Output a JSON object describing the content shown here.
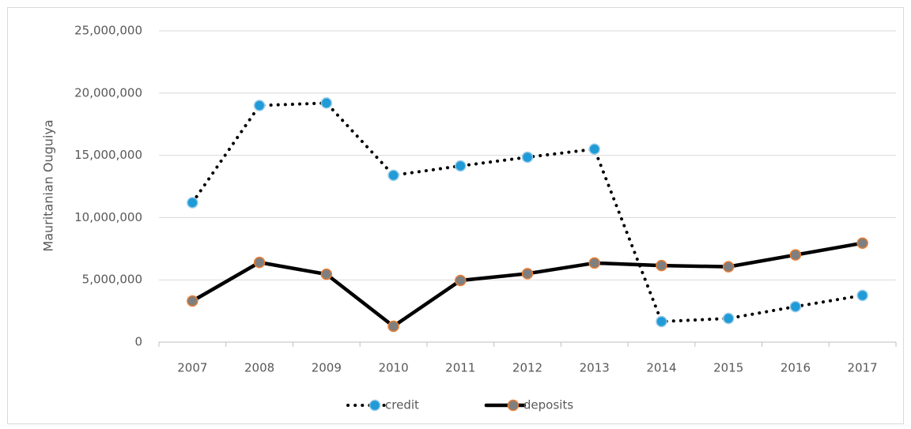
{
  "chart_data": {
    "type": "line",
    "y_label": "Mauritanian Ouguiya",
    "categories": [
      "2007",
      "2008",
      "2009",
      "2010",
      "2011",
      "2012",
      "2013",
      "2014",
      "2015",
      "2016",
      "2017"
    ],
    "series": [
      {
        "name": "credit",
        "color": "#000000",
        "dash": "dotted",
        "marker_fill": "#1f9bd7",
        "marker_stroke": "#9ccbe8",
        "values": [
          11200000,
          19000000,
          19200000,
          13400000,
          14150000,
          14850000,
          15500000,
          1650000,
          1900000,
          2850000,
          3750000
        ]
      },
      {
        "name": "deposits",
        "color": "#000000",
        "dash": "solid",
        "marker_fill": "#7f7f7f",
        "marker_stroke": "#ed7d31",
        "values": [
          3300000,
          6400000,
          5450000,
          1270000,
          4950000,
          5500000,
          6350000,
          6150000,
          6050000,
          7000000,
          7950000
        ]
      }
    ],
    "ylim": [
      0,
      25000000
    ],
    "yticks": [
      0,
      {
        "value": 5000000,
        "label": "5,000,000"
      },
      {
        "value": 10000000,
        "label": "10,000,000"
      },
      {
        "value": 15000000,
        "label": "15,000,000"
      },
      {
        "value": 20000000,
        "label": "20,000,000"
      },
      {
        "value": 25000000,
        "label": "25,000,000"
      }
    ],
    "grid": true,
    "legend": "bottom"
  }
}
